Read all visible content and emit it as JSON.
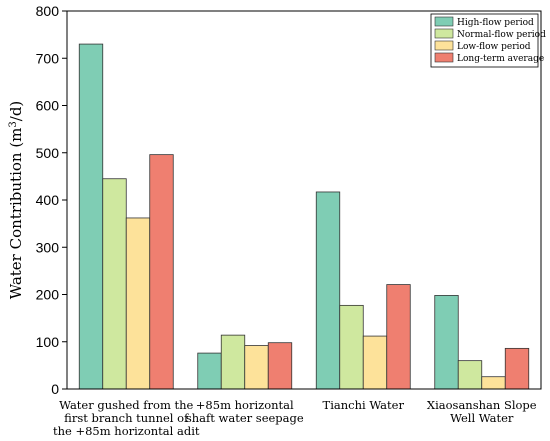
{
  "chart_data": {
    "type": "bar",
    "ylabel_main": "Water Contribution (m",
    "ylabel_sup": "3",
    "ylabel_tail": "/d)",
    "xlabel": "",
    "ylim": [
      0,
      800
    ],
    "yticks": [
      0,
      100,
      200,
      300,
      400,
      500,
      600,
      700,
      800
    ],
    "grid": false,
    "legend_position": "top-right",
    "categories": [
      [
        "Water gushed from the",
        "first branch tunnel of",
        "the +85m horizontal adit"
      ],
      [
        "+85m horizontal",
        "shaft water seepage"
      ],
      [
        "Tianchi Water"
      ],
      [
        "Xiaosanshan Slope",
        "Well Water"
      ]
    ],
    "series": [
      {
        "name": "High-flow period",
        "color": "#7fcdb4",
        "values": [
          730,
          76,
          417,
          198
        ]
      },
      {
        "name": "Normal-flow period",
        "color": "#cfe89f",
        "values": [
          445,
          114,
          177,
          60
        ]
      },
      {
        "name": "Low-flow period",
        "color": "#fde29a",
        "values": [
          362,
          92,
          112,
          26
        ]
      },
      {
        "name": "Long-term average",
        "color": "#ef7f70",
        "values": [
          496,
          98,
          221,
          86
        ]
      }
    ]
  }
}
